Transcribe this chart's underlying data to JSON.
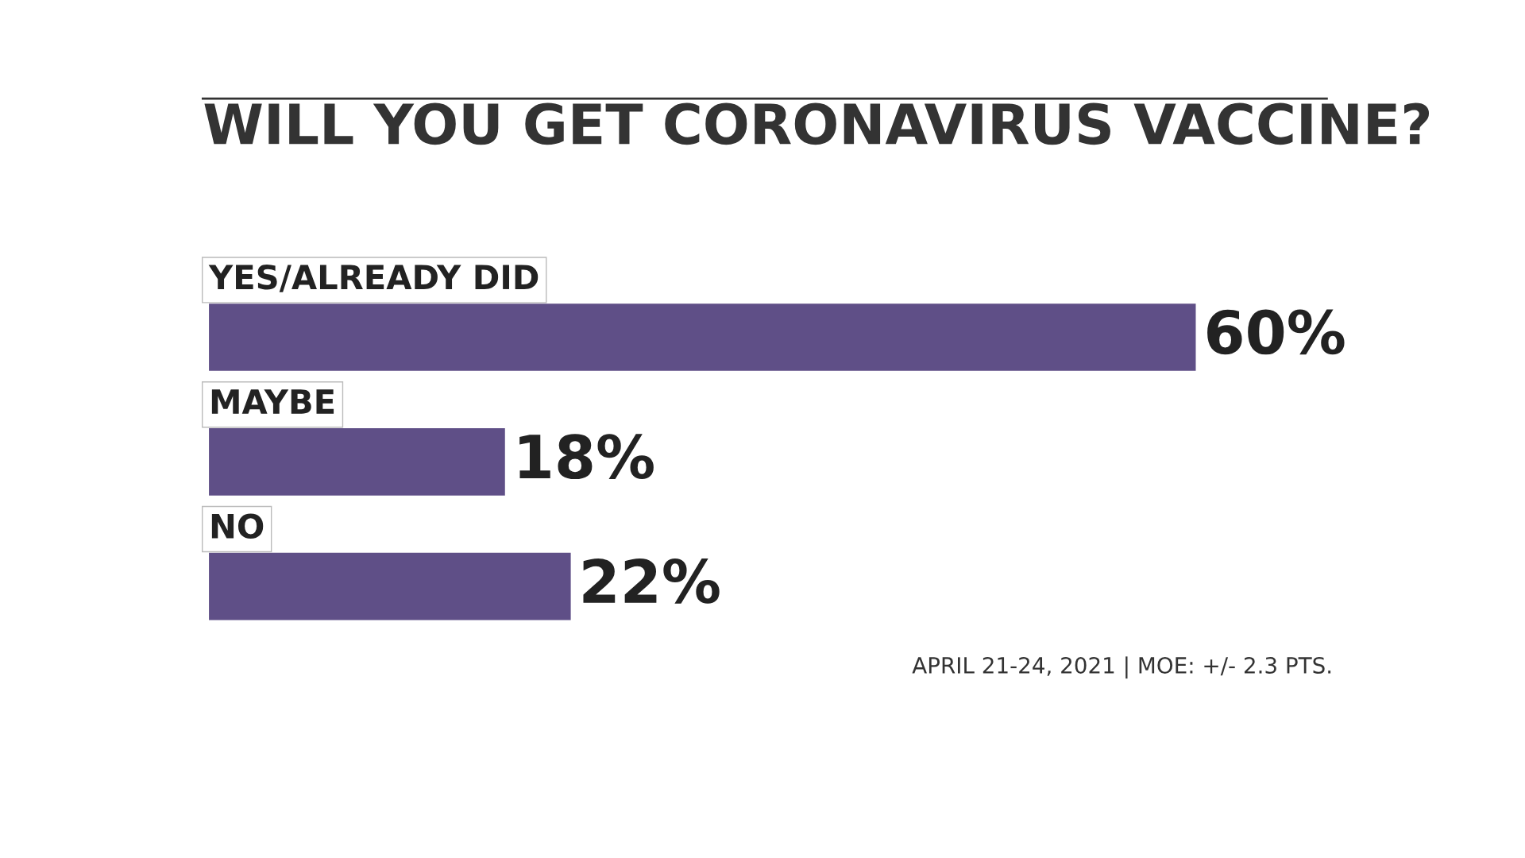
{
  "chart_data": {
    "type": "bar",
    "orientation": "horizontal",
    "title": "WILL YOU GET CORONAVIRUS VACCINE?",
    "categories": [
      "YES/ALREADY DID",
      "MAYBE",
      "NO"
    ],
    "values": [
      60,
      18,
      22
    ],
    "value_labels": [
      "60%",
      "18%",
      "22%"
    ],
    "color": "#5f4f87",
    "annotations": [
      "APRIL 21-24, 2021 | MOE: +/- 2.3 PTS."
    ]
  }
}
